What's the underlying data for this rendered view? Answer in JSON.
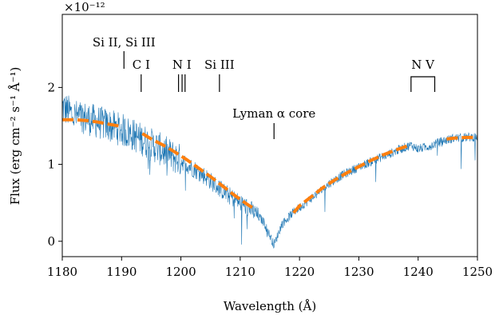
{
  "chart_data": {
    "type": "line",
    "xlabel": "Wavelength (Å)",
    "ylabel": "Flux (erg cm⁻² s⁻¹ Å⁻¹)",
    "y_multiplier": "×10⁻¹²",
    "xlim": [
      1180,
      1250
    ],
    "ylim": [
      -0.2,
      2.95
    ],
    "x_ticks": [
      1180,
      1190,
      1200,
      1210,
      1220,
      1230,
      1240,
      1250
    ],
    "y_ticks": [
      0,
      1,
      2
    ],
    "grid": false,
    "colors": {
      "spectrum": "#1f77b4",
      "fit": "#ff7f0e",
      "axis": "#000000"
    },
    "series": [
      {
        "kind": "spectrum",
        "x": [
          1180,
          1182,
          1184,
          1186,
          1188,
          1190,
          1192,
          1194,
          1196,
          1198,
          1200,
          1202,
          1204,
          1206,
          1208,
          1210,
          1212,
          1214,
          1215.7,
          1217,
          1219,
          1221,
          1223,
          1225,
          1227,
          1229,
          1231,
          1233,
          1235,
          1237,
          1238.8,
          1240,
          1242,
          1244,
          1246,
          1248,
          1250
        ],
        "y": [
          1.75,
          1.63,
          1.6,
          1.55,
          1.5,
          1.45,
          1.38,
          1.3,
          1.22,
          1.13,
          1.05,
          0.95,
          0.85,
          0.72,
          0.6,
          0.5,
          0.4,
          0.25,
          -0.05,
          0.22,
          0.38,
          0.5,
          0.62,
          0.75,
          0.85,
          0.93,
          1.0,
          1.07,
          1.13,
          1.2,
          1.25,
          1.2,
          1.24,
          1.3,
          1.34,
          1.35,
          1.36
        ]
      },
      {
        "kind": "fit",
        "segments": [
          {
            "x": [
              1180,
              1182,
              1184,
              1186,
              1188,
              1189.5
            ],
            "y": [
              1.58,
              1.58,
              1.57,
              1.55,
              1.52,
              1.5
            ]
          },
          {
            "x": [
              1193.5,
              1195,
              1197,
              1199,
              1201,
              1203,
              1205,
              1207,
              1209,
              1211,
              1212.2
            ],
            "y": [
              1.4,
              1.33,
              1.25,
              1.16,
              1.06,
              0.95,
              0.84,
              0.72,
              0.6,
              0.49,
              0.43
            ]
          },
          {
            "x": [
              1219,
              1220,
              1222,
              1224,
              1226,
              1228,
              1230,
              1232,
              1234,
              1236,
              1238.2
            ],
            "y": [
              0.37,
              0.46,
              0.58,
              0.7,
              0.8,
              0.89,
              0.97,
              1.05,
              1.12,
              1.18,
              1.24
            ]
          },
          {
            "x": [
              1244.8,
              1246,
              1248,
              1250
            ],
            "y": [
              1.33,
              1.34,
              1.35,
              1.35
            ]
          }
        ]
      }
    ],
    "annotations": [
      {
        "label": "Si II, Si III",
        "x": [
          1190.4
        ]
      },
      {
        "label": "C I",
        "x": [
          1193.3
        ]
      },
      {
        "label": "N I",
        "x": [
          1199.6,
          1200.2,
          1200.7
        ]
      },
      {
        "label": "Si III",
        "x": [
          1206.5
        ]
      },
      {
        "label": "Lyman α core",
        "x": [
          1215.7
        ]
      },
      {
        "label": "N V",
        "x": [
          1238.8,
          1242.8
        ],
        "bracket": true
      }
    ]
  }
}
